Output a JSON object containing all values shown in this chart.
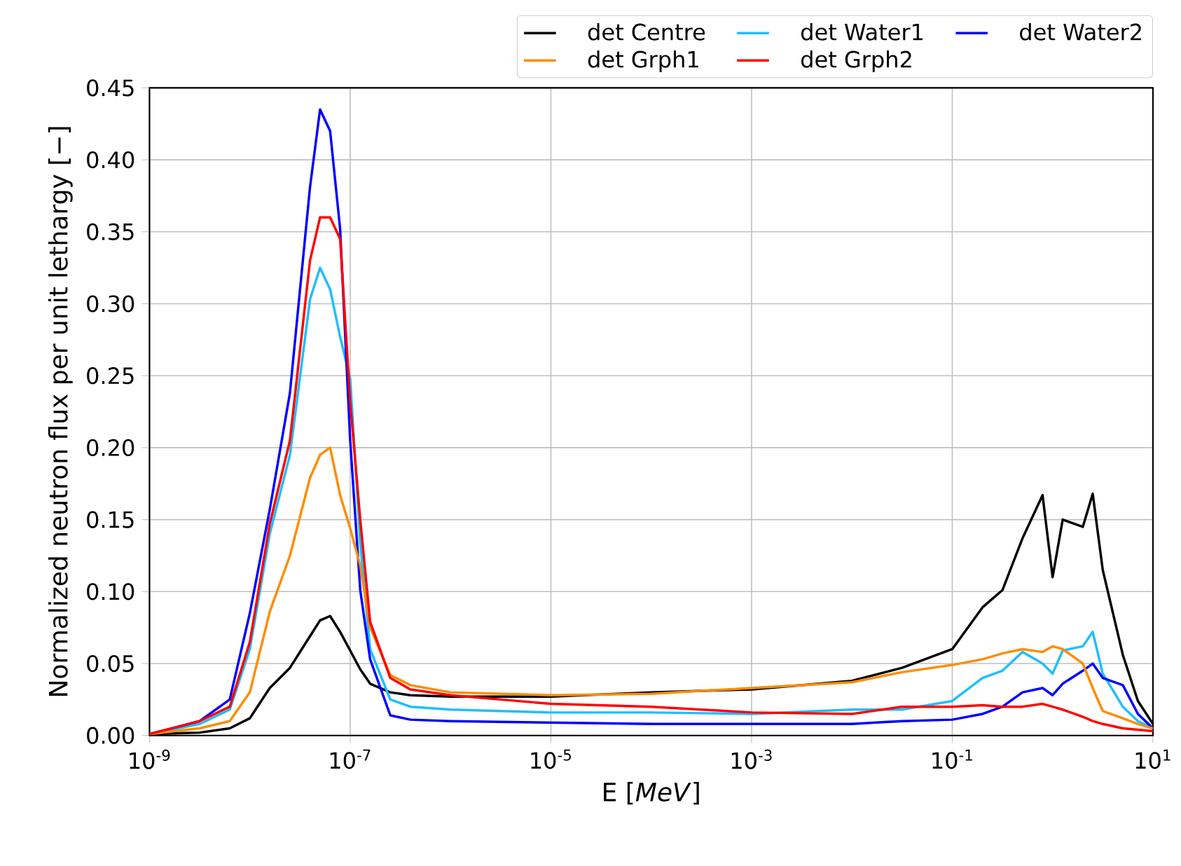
{
  "chart_data": {
    "type": "line",
    "xlabel": "E [*MeV*]",
    "ylabel": "Normalized neutron flux per unit lethargy [−]",
    "log": "x",
    "grid": true,
    "legend": "top",
    "xlim": [
      1e-09,
      10
    ],
    "ylim": [
      0,
      0.45
    ],
    "xticks": [
      {
        "value": 1e-09,
        "label": "10$^{-9}$"
      },
      {
        "value": 1e-07,
        "label": "10$^{-7}$"
      },
      {
        "value": 1e-05,
        "label": "10$^{-5}$"
      },
      {
        "value": 0.001,
        "label": "10$^{-3}$"
      },
      {
        "value": 0.1,
        "label": "10$^{-1}$"
      },
      {
        "value": 10,
        "label": "10$^{1}$"
      }
    ],
    "yticks": [
      {
        "value": 0,
        "label": "0.00"
      },
      {
        "value": 0.05,
        "label": "0.05"
      },
      {
        "value": 0.1,
        "label": "0.10"
      },
      {
        "value": 0.15,
        "label": "0.15"
      },
      {
        "value": 0.2,
        "label": "0.20"
      },
      {
        "value": 0.25,
        "label": "0.25"
      },
      {
        "value": 0.3,
        "label": "0.30"
      },
      {
        "value": 0.35,
        "label": "0.35"
      },
      {
        "value": 0.4,
        "label": "0.40"
      },
      {
        "value": 0.45,
        "label": "0.45"
      }
    ],
    "x": [
      1e-09,
      3.16e-09,
      6.31e-09,
      1e-08,
      1.58e-08,
      2.51e-08,
      3.98e-08,
      5.01e-08,
      6.31e-08,
      7.94e-08,
      1e-07,
      1.26e-07,
      1.58e-07,
      2.51e-07,
      3.98e-07,
      1e-06,
      1e-05,
      0.0001,
      0.001,
      0.01,
      0.0316,
      0.1,
      0.2,
      0.316,
      0.501,
      0.794,
      1,
      1.26,
      2,
      2.51,
      3.16,
      5.01,
      7.08,
      10
    ],
    "series": [
      {
        "name": "det Centre",
        "color": "#000000",
        "values": [
          0.001,
          0.002,
          0.005,
          0.012,
          0.033,
          0.047,
          0.069,
          0.08,
          0.083,
          0.072,
          0.059,
          0.046,
          0.036,
          0.03,
          0.028,
          0.027,
          0.027,
          0.03,
          0.032,
          0.038,
          0.047,
          0.06,
          0.089,
          0.101,
          0.137,
          0.167,
          0.11,
          0.15,
          0.145,
          0.168,
          0.115,
          0.056,
          0.024,
          0.008
        ]
      },
      {
        "name": "det Water1",
        "color": "#1ebeff",
        "values": [
          0.001,
          0.008,
          0.018,
          0.06,
          0.14,
          0.195,
          0.303,
          0.325,
          0.31,
          0.277,
          0.248,
          0.134,
          0.06,
          0.025,
          0.02,
          0.018,
          0.016,
          0.016,
          0.015,
          0.018,
          0.018,
          0.024,
          0.04,
          0.045,
          0.058,
          0.05,
          0.043,
          0.059,
          0.062,
          0.072,
          0.043,
          0.02,
          0.01,
          0.005
        ]
      },
      {
        "name": "det Water2",
        "color": "#0000ff",
        "values": [
          0.001,
          0.01,
          0.025,
          0.085,
          0.157,
          0.238,
          0.381,
          0.435,
          0.42,
          0.352,
          0.205,
          0.101,
          0.053,
          0.014,
          0.011,
          0.01,
          0.009,
          0.008,
          0.008,
          0.008,
          0.01,
          0.011,
          0.015,
          0.02,
          0.03,
          0.033,
          0.028,
          0.036,
          0.045,
          0.05,
          0.04,
          0.035,
          0.015,
          0.005
        ]
      },
      {
        "name": "det Grph1",
        "color": "#ff8c00",
        "values": [
          0.001,
          0.005,
          0.01,
          0.03,
          0.086,
          0.125,
          0.179,
          0.195,
          0.2,
          0.167,
          0.144,
          0.118,
          0.075,
          0.042,
          0.035,
          0.03,
          0.028,
          0.029,
          0.033,
          0.037,
          0.044,
          0.049,
          0.053,
          0.057,
          0.06,
          0.058,
          0.062,
          0.06,
          0.05,
          0.033,
          0.017,
          0.012,
          0.008,
          0.005
        ]
      },
      {
        "name": "det Grph2",
        "color": "#ff0000",
        "values": [
          0.001,
          0.01,
          0.02,
          0.065,
          0.147,
          0.205,
          0.33,
          0.36,
          0.36,
          0.345,
          0.232,
          0.15,
          0.079,
          0.04,
          0.032,
          0.028,
          0.022,
          0.02,
          0.016,
          0.015,
          0.02,
          0.02,
          0.021,
          0.02,
          0.02,
          0.022,
          0.02,
          0.018,
          0.013,
          0.01,
          0.008,
          0.005,
          0.004,
          0.003
        ]
      }
    ]
  }
}
